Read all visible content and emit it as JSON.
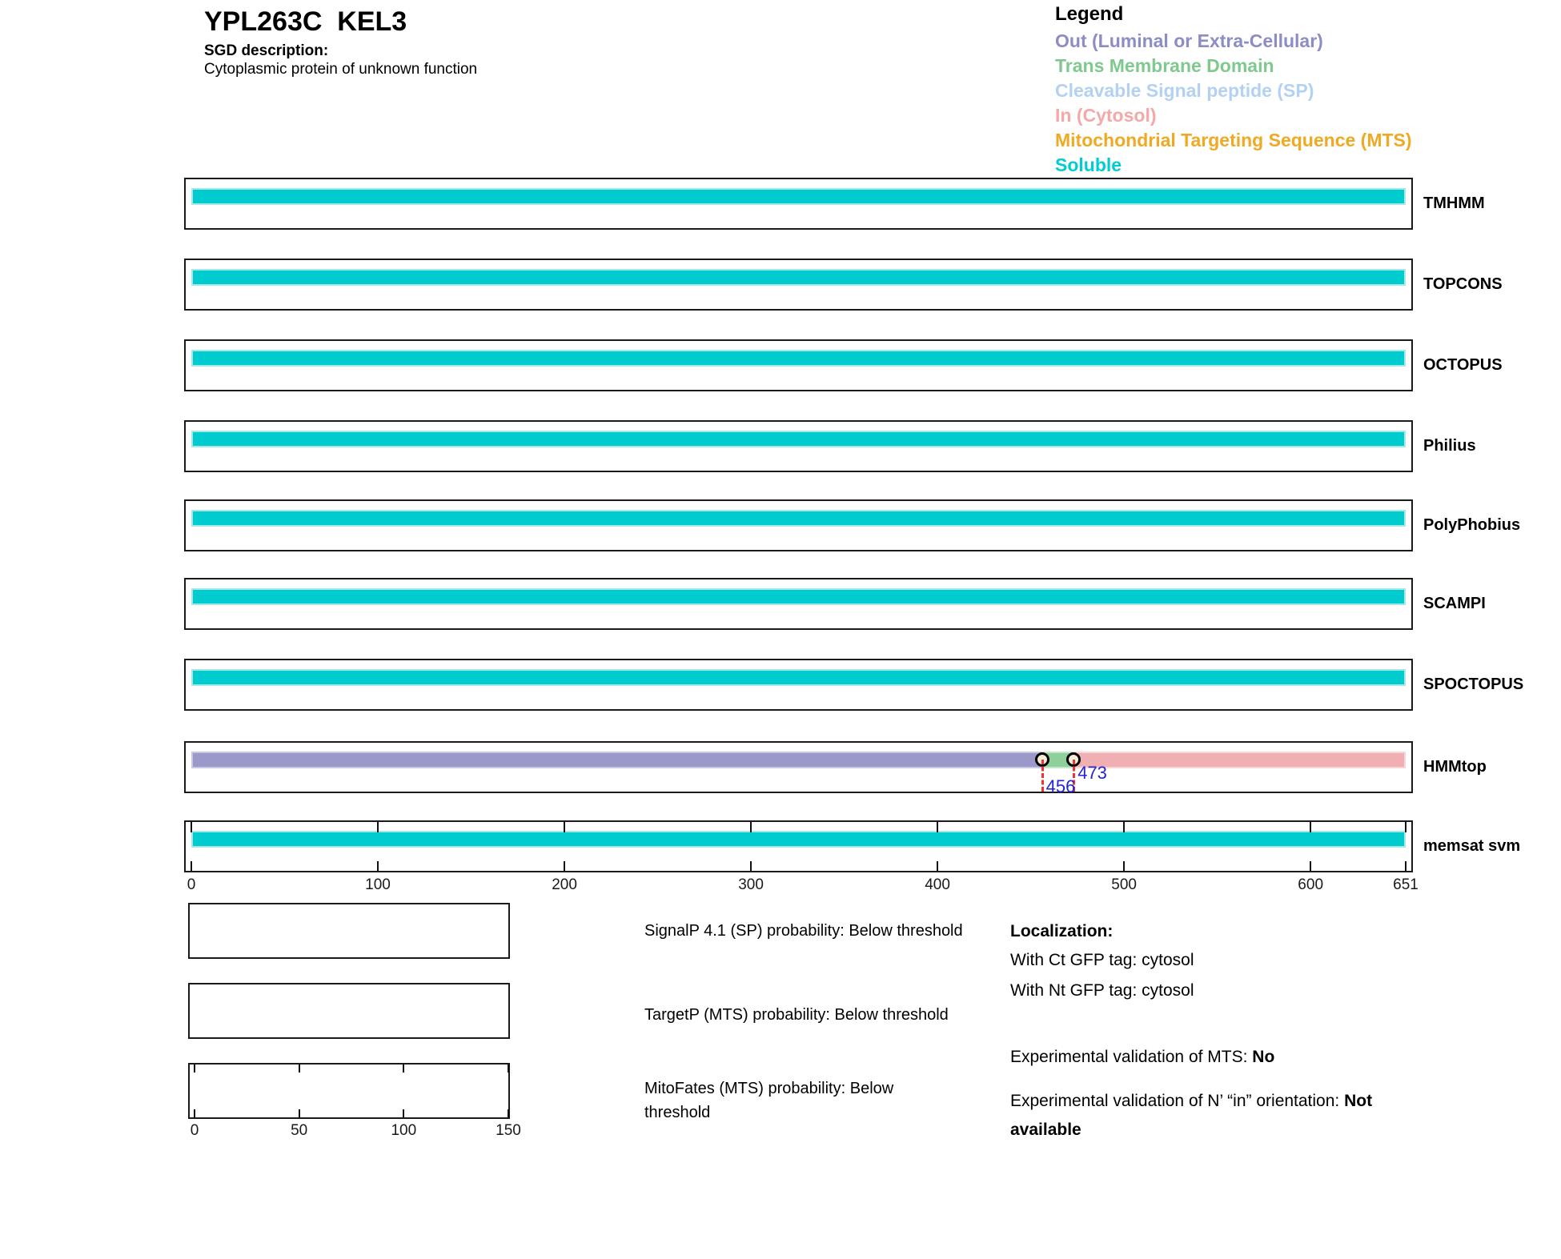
{
  "header": {
    "title": "YPL263C  KEL3",
    "sgd_label": "SGD description:",
    "sgd_description": "Cytoplasmic protein of unknown function"
  },
  "legend": {
    "title": "Legend",
    "items": [
      {
        "key": "out",
        "label": "Out (Luminal or Extra-Cellular)",
        "color": "#8D8DC6"
      },
      {
        "key": "tm",
        "label": "Trans Membrane Domain",
        "color": "#7FC98F"
      },
      {
        "key": "sp",
        "label": "Cleavable Signal peptide (SP)",
        "color": "#B3D1F2"
      },
      {
        "key": "in",
        "label": "In (Cytosol)",
        "color": "#F4A8A8"
      },
      {
        "key": "mts",
        "label": "Mitochondrial Targeting Sequence (MTS)",
        "color": "#EFA923"
      },
      {
        "key": "soluble",
        "label": "Soluble",
        "color": "#00CDD1"
      }
    ]
  },
  "chart_data": {
    "type": "bar",
    "orientation": "horizontal-span-tracks",
    "residue_axis": {
      "min": 0,
      "max": 651,
      "ticks": [
        0,
        100,
        200,
        300,
        400,
        500,
        600,
        651
      ]
    },
    "class_colors": {
      "soluble": {
        "fill": "#00CBCE",
        "edge": "#A5E8E8"
      },
      "out": {
        "fill": "#9A99C9",
        "edge": "#C9C8E4"
      },
      "tm": {
        "fill": "#8FCF9A",
        "edge": "#C3E7CA"
      },
      "in": {
        "fill": "#F0AFB3",
        "edge": "#F8D6D8"
      }
    },
    "tracks": [
      {
        "name": "TMHMM",
        "segments": [
          {
            "class": "soluble",
            "start": 0,
            "end": 651
          }
        ]
      },
      {
        "name": "TOPCONS",
        "segments": [
          {
            "class": "soluble",
            "start": 0,
            "end": 651
          }
        ]
      },
      {
        "name": "OCTOPUS",
        "segments": [
          {
            "class": "soluble",
            "start": 0,
            "end": 651
          }
        ]
      },
      {
        "name": "Philius",
        "segments": [
          {
            "class": "soluble",
            "start": 0,
            "end": 651
          }
        ]
      },
      {
        "name": "PolyPhobius",
        "segments": [
          {
            "class": "soluble",
            "start": 0,
            "end": 651
          }
        ]
      },
      {
        "name": "SCAMPI",
        "segments": [
          {
            "class": "soluble",
            "start": 0,
            "end": 651
          }
        ]
      },
      {
        "name": "SPOCTOPUS",
        "segments": [
          {
            "class": "soluble",
            "start": 0,
            "end": 651
          }
        ]
      },
      {
        "name": "HMMtop",
        "segments": [
          {
            "class": "out",
            "start": 0,
            "end": 456
          },
          {
            "class": "tm",
            "start": 456,
            "end": 473
          },
          {
            "class": "in",
            "start": 473,
            "end": 651
          }
        ],
        "markers": [
          {
            "pos": 456,
            "label": "456",
            "level": "low"
          },
          {
            "pos": 473,
            "label": "473",
            "level": "high"
          }
        ]
      },
      {
        "name": "memsat svm",
        "segments": [
          {
            "class": "soluble",
            "start": 0,
            "end": 651
          }
        ],
        "inner_ticks": [
          0,
          100,
          200,
          300,
          400,
          500,
          600,
          651
        ]
      }
    ],
    "marker_style": {
      "line_color": "#EE3333",
      "label_color": "#2323DC",
      "circle_fill": "#F6EED8"
    },
    "probability_plots": [
      {
        "label": "SignalP 4.1 (SP) probability: Below threshold",
        "data": []
      },
      {
        "label": "TargetP (MTS) probability: Below threshold",
        "data": []
      },
      {
        "label": "MitoFates (MTS) probability: Below threshold",
        "data": [],
        "inner_ticks": [
          0,
          50,
          100,
          150
        ]
      }
    ],
    "probability_axis": {
      "min": 0,
      "max": 150,
      "ticks": [
        0,
        50,
        100,
        150
      ]
    }
  },
  "localization": {
    "title": "Localization:",
    "lines": [
      "With Ct GFP tag: cytosol",
      "With Nt GFP tag: cytosol"
    ],
    "mts_label": "Experimental validation of MTS: ",
    "mts_value": "No",
    "orientation_label": "Experimental validation of N’ “in” orientation: ",
    "orientation_value": "Not available"
  }
}
